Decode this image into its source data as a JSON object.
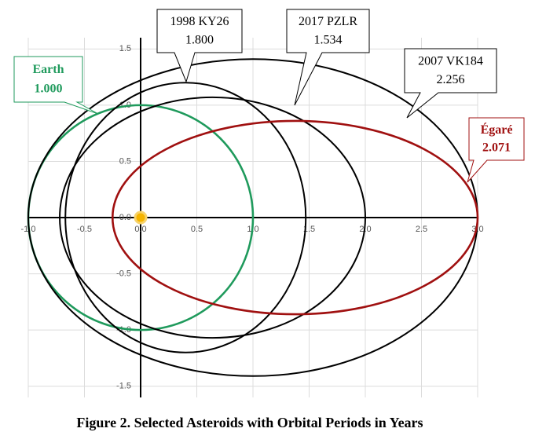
{
  "chart_data": {
    "type": "orbit",
    "caption": "Figure 2.  Selected Asteroids with Orbital Periods in Years",
    "xlim": [
      -1.0,
      3.0
    ],
    "ylim": [
      -1.6,
      1.6
    ],
    "xticks": [
      {
        "value": -1.0,
        "label": "-1.0"
      },
      -0.5,
      {
        "value": 0,
        "label": "0.0"
      },
      0.5,
      {
        "value": 1.0,
        "label": "1.0"
      },
      1.5,
      {
        "value": 2.0,
        "label": "2.0"
      },
      2.5,
      {
        "value": 3.0,
        "label": "3.0"
      }
    ],
    "yticks": [
      -1.5,
      {
        "value": -1.0,
        "label": "-1.0"
      },
      -0.5,
      {
        "value": 0,
        "label": "0.0"
      },
      0.5,
      {
        "value": 1.0,
        "label": "1.0"
      },
      1.5
    ],
    "grid": true,
    "sun": {
      "x": 0,
      "y": 0,
      "color": "#f5b400"
    },
    "series": [
      {
        "name": "Earth",
        "color": "#1f9a5c",
        "period": 1.0,
        "period_label": "1.000",
        "center": [
          0,
          0
        ],
        "semi_axes": [
          1.0,
          1.0
        ]
      },
      {
        "name": "1998 KY26",
        "color": "#000000",
        "period": 1.8,
        "period_label": "1.800",
        "center": [
          0.4,
          0
        ],
        "semi_axes": [
          1.07,
          1.2
        ]
      },
      {
        "name": "2017 PZLR",
        "color": "#000000",
        "period": 1.534,
        "period_label": "1.534",
        "center": [
          0.64,
          0
        ],
        "semi_axes": [
          1.36,
          1.07
        ]
      },
      {
        "name": "2007 VK184",
        "color": "#000000",
        "period": 2.256,
        "period_label": "2.256",
        "center": [
          1.0,
          0
        ],
        "semi_axes": [
          2.0,
          1.41
        ]
      },
      {
        "name": "Égaré",
        "color": "#a01010",
        "period": 2.071,
        "period_label": "2.071",
        "center": [
          1.375,
          0
        ],
        "semi_axes": [
          1.625,
          0.86
        ]
      }
    ]
  }
}
